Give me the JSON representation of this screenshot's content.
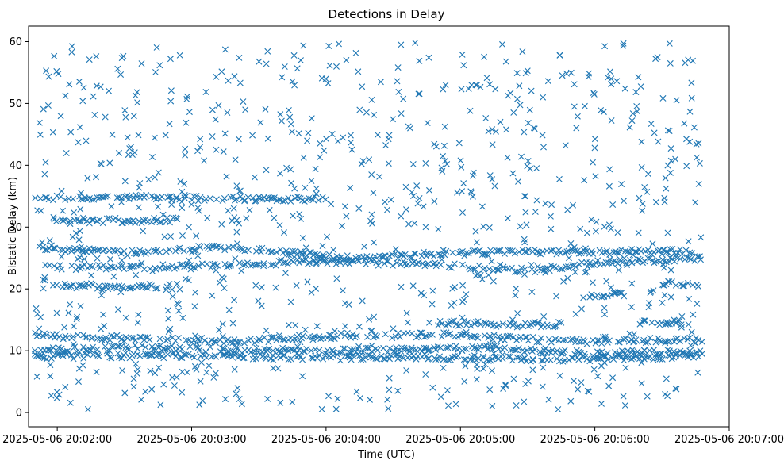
{
  "chart_data": {
    "type": "scatter",
    "title": "Detections in Delay",
    "xlabel": "Time (UTC)",
    "ylabel": "Bistatic Delay (km)",
    "marker": "x",
    "color": "#1f77b4",
    "xlim_seconds_after_20_00_00": [
      107.2,
      420
    ],
    "ylim": [
      -2.3,
      62.5
    ],
    "x_ticks": [
      {
        "seconds": 120,
        "label": "2025-05-06 20:02:00"
      },
      {
        "seconds": 180,
        "label": "2025-05-06 20:03:00"
      },
      {
        "seconds": 240,
        "label": "2025-05-06 20:04:00"
      },
      {
        "seconds": 300,
        "label": "2025-05-06 20:05:00"
      },
      {
        "seconds": 360,
        "label": "2025-05-06 20:06:00"
      },
      {
        "seconds": 420,
        "label": "2025-05-06 20:07:00"
      }
    ],
    "y_ticks": [
      {
        "value": 0,
        "label": "0"
      },
      {
        "value": 10,
        "label": "10"
      },
      {
        "value": 20,
        "label": "20"
      },
      {
        "value": 30,
        "label": "30"
      },
      {
        "value": 40,
        "label": "40"
      },
      {
        "value": 50,
        "label": "50"
      },
      {
        "value": 60,
        "label": "60"
      }
    ],
    "time_range_seconds": [
      110,
      408
    ],
    "tracks": [
      {
        "name": "track-a",
        "points": [
          [
            110,
            26.8
          ],
          [
            150,
            25.8
          ],
          [
            190,
            26.8
          ],
          [
            220,
            26.0
          ],
          [
            250,
            25.0
          ],
          [
            300,
            25.8
          ],
          [
            350,
            26.0
          ],
          [
            408,
            26.0
          ]
        ]
      },
      {
        "name": "track-b",
        "points": [
          [
            113,
            23.5
          ],
          [
            160,
            23.5
          ],
          [
            200,
            24.0
          ],
          [
            240,
            24.5
          ],
          [
            280,
            24.0
          ],
          [
            330,
            23.0
          ],
          [
            370,
            24.5
          ],
          [
            408,
            24.8
          ]
        ]
      },
      {
        "name": "track-c",
        "points": [
          [
            118,
            20.5
          ],
          [
            150,
            20.5
          ],
          [
            175,
            20.3
          ]
        ]
      },
      {
        "name": "track-d",
        "points": [
          [
            110,
            34.8
          ],
          [
            150,
            34.8
          ],
          [
            190,
            34.6
          ],
          [
            240,
            34.6
          ]
        ]
      },
      {
        "name": "track-e",
        "points": [
          [
            118,
            31.2
          ],
          [
            140,
            31.0
          ],
          [
            175,
            31.2
          ]
        ]
      },
      {
        "name": "track-f",
        "points": [
          [
            110,
            12.5
          ],
          [
            150,
            12.0
          ],
          [
            200,
            11.5
          ],
          [
            250,
            12.5
          ],
          [
            300,
            12.5
          ],
          [
            350,
            11.5
          ],
          [
            408,
            11.8
          ]
        ]
      },
      {
        "name": "track-g",
        "points": [
          [
            110,
            10.0
          ],
          [
            160,
            10.5
          ],
          [
            210,
            10.0
          ],
          [
            260,
            10.0
          ],
          [
            310,
            10.5
          ],
          [
            360,
            9.5
          ],
          [
            408,
            9.8
          ]
        ]
      },
      {
        "name": "track-h",
        "points": [
          [
            110,
            9.0
          ],
          [
            160,
            9.3
          ],
          [
            220,
            9.0
          ],
          [
            280,
            9.0
          ],
          [
            340,
            8.5
          ],
          [
            408,
            9.2
          ]
        ]
      },
      {
        "name": "track-i",
        "points": [
          [
            290,
            14.5
          ],
          [
            330,
            14.2
          ],
          [
            345,
            14.3
          ]
        ]
      },
      {
        "name": "track-j",
        "points": [
          [
            380,
            14.5
          ],
          [
            400,
            14.7
          ]
        ]
      },
      {
        "name": "track-k",
        "points": [
          [
            390,
            20.8
          ],
          [
            408,
            20.7
          ]
        ]
      },
      {
        "name": "track-l",
        "points": [
          [
            355,
            19.0
          ],
          [
            375,
            19.2
          ]
        ]
      }
    ],
    "scatter_noise_y_range": [
      0.5,
      60
    ]
  }
}
